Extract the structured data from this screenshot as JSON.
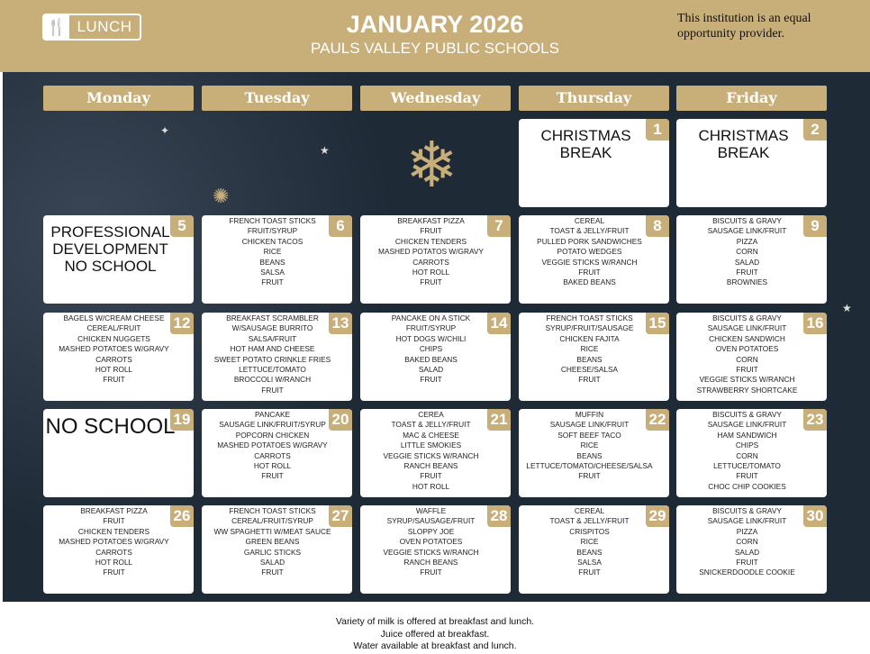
{
  "header": {
    "logo_label": "LUNCH",
    "title": "JANUARY 2026",
    "subtitle": "PAULS VALLEY PUBLIC SCHOOLS",
    "notice": "This institution is an equal opportunity provider."
  },
  "colors": {
    "gold": "#c8ae78",
    "background": "#1f2a37"
  },
  "days": [
    "Monday",
    "Tuesday",
    "Wednesday",
    "Thursday",
    "Friday"
  ],
  "weeks": [
    [
      null,
      null,
      null,
      {
        "day": "1",
        "special": "CHRISTMAS BREAK"
      },
      {
        "day": "2",
        "special": "CHRISTMAS BREAK"
      }
    ],
    [
      {
        "day": "5",
        "special": "PROFESSIONAL DEVELOPMENT NO SCHOOL"
      },
      {
        "day": "6",
        "items": [
          "FRENCH TOAST STICKS",
          "FRUIT/SYRUP",
          "CHICKEN TACOS",
          "RICE",
          "BEANS",
          "SALSA",
          "FRUIT"
        ]
      },
      {
        "day": "7",
        "items": [
          "BREAKFAST PIZZA",
          "FRUIT",
          "CHICKEN TENDERS",
          "MASHED POTATOS W/GRAVY",
          "CARROTS",
          "HOT ROLL",
          "FRUIT"
        ]
      },
      {
        "day": "8",
        "items": [
          "CEREAL",
          "TOAST & JELLY/FRUIT",
          "PULLED PORK SANDWICHES",
          "POTATO WEDGES",
          "VEGGIE STICKS W/RANCH",
          "FRUIT",
          "BAKED BEANS"
        ]
      },
      {
        "day": "9",
        "items": [
          "BISCUITS & GRAVY",
          "SAUSAGE LINK/FRUIT",
          "PIZZA",
          "CORN",
          "SALAD",
          "FRUIT",
          "BROWNIES"
        ]
      }
    ],
    [
      {
        "day": "12",
        "items": [
          "BAGELS W/CREAM CHEESE",
          "CEREAL/FRUIT",
          "CHICKEN NUGGETS",
          "MASHED POTATOES W/GRAVY",
          "CARROTS",
          "HOT ROLL",
          "FRUIT"
        ]
      },
      {
        "day": "13",
        "items": [
          "BREAKFAST SCRAMBLER",
          "W/SAUSAGE BURRITO",
          "SALSA/FRUIT",
          "HOT HAM AND CHEESE",
          "SWEET POTATO CRINKLE FRIES",
          "LETTUCE/TOMATO",
          "BROCCOLI W/RANCH",
          "FRUIT"
        ]
      },
      {
        "day": "14",
        "items": [
          "PANCAKE ON A STICK",
          "FRUIT/SYRUP",
          "HOT DOGS W/CHILI",
          "CHIPS",
          "BAKED BEANS",
          "SALAD",
          "FRUIT"
        ]
      },
      {
        "day": "15",
        "items": [
          "FRENCH TOAST STICKS",
          "SYRUP/FRUIT/SAUSAGE",
          "CHICKEN FAJITA",
          "RICE",
          "BEANS",
          "CHEESE/SALSA",
          "FRUIT"
        ]
      },
      {
        "day": "16",
        "items": [
          "BISCUITS & GRAVY",
          "SAUSAGE LINK/FRUIT",
          "CHICKEN SANDWICH",
          "OVEN POTATOES",
          "CORN",
          "FRUIT",
          "VEGGIE STICKS W/RANCH",
          "STRAWBERRY SHORTCAKE"
        ]
      }
    ],
    [
      {
        "day": "19",
        "special_big": "NO SCHOOL"
      },
      {
        "day": "20",
        "items": [
          "PANCAKE",
          "SAUSAGE LINK/FRUIT/SYRUP",
          "POPCORN CHICKEN",
          "MASHED POTATOES W/GRAVY",
          "CARROTS",
          "HOT ROLL",
          "FRUIT"
        ]
      },
      {
        "day": "21",
        "items": [
          "CEREA",
          "TOAST & JELLY/FRUIT",
          "MAC & CHEESE",
          "LITTLE SMOKIES",
          "VEGGIE STICKS W/RANCH",
          "RANCH BEANS",
          "FRUIT",
          "HOT ROLL"
        ]
      },
      {
        "day": "22",
        "items": [
          "MUFFIN",
          "SAUSAGE LINK/FRUIT",
          "SOFT BEEF TACO",
          "RICE",
          "BEANS",
          "LETTUCE/TOMATO/CHEESE/SALSA",
          "FRUIT"
        ]
      },
      {
        "day": "23",
        "items": [
          "BISCUITS & GRAVY",
          "SAUSAGE LINK/FRUIT",
          "HAM SANDWICH",
          "CHIPS",
          "CORN",
          "LETTUCE/TOMATO",
          "FRUIT",
          "CHOC CHIP COOKIES"
        ]
      }
    ],
    [
      {
        "day": "26",
        "items": [
          "BREAKFAST PIZZA",
          "FRUIT",
          "CHICKEN TENDERS",
          "MASHED POTATOES W/GRAVY",
          "CARROTS",
          "HOT ROLL",
          "FRUIT"
        ]
      },
      {
        "day": "27",
        "items": [
          "FRENCH TOAST STICKS",
          "CEREAL/FRUIT/SYRUP",
          "WW SPAGHETTI W/MEAT SAUCE",
          "GREEN BEANS",
          "GARLIC STICKS",
          "SALAD",
          "FRUIT"
        ]
      },
      {
        "day": "28",
        "items": [
          "WAFFLE",
          "SYRUP/SAUSAGE/FRUIT",
          "SLOPPY JOE",
          "OVEN POTATOES",
          "VEGGIE STICKS W/RANCH",
          "RANCH BEANS",
          "FRUIT"
        ]
      },
      {
        "day": "29",
        "items": [
          "CEREAL",
          "TOAST & JELLY/FRUIT",
          "CRISPITOS",
          "RICE",
          "BEANS",
          "SALSA",
          "FRUIT"
        ]
      },
      {
        "day": "30",
        "items": [
          "BISCUITS & GRAVY",
          "SAUSAGE LINK/FRUIT",
          "PIZZA",
          "CORN",
          "SALAD",
          "FRUIT",
          "SNICKERDOODLE COOKIE"
        ]
      }
    ]
  ],
  "footer": [
    "Variety of milk is offered at breakfast and lunch.",
    "Juice offered at breakfast.",
    "Water available at breakfast and lunch."
  ]
}
